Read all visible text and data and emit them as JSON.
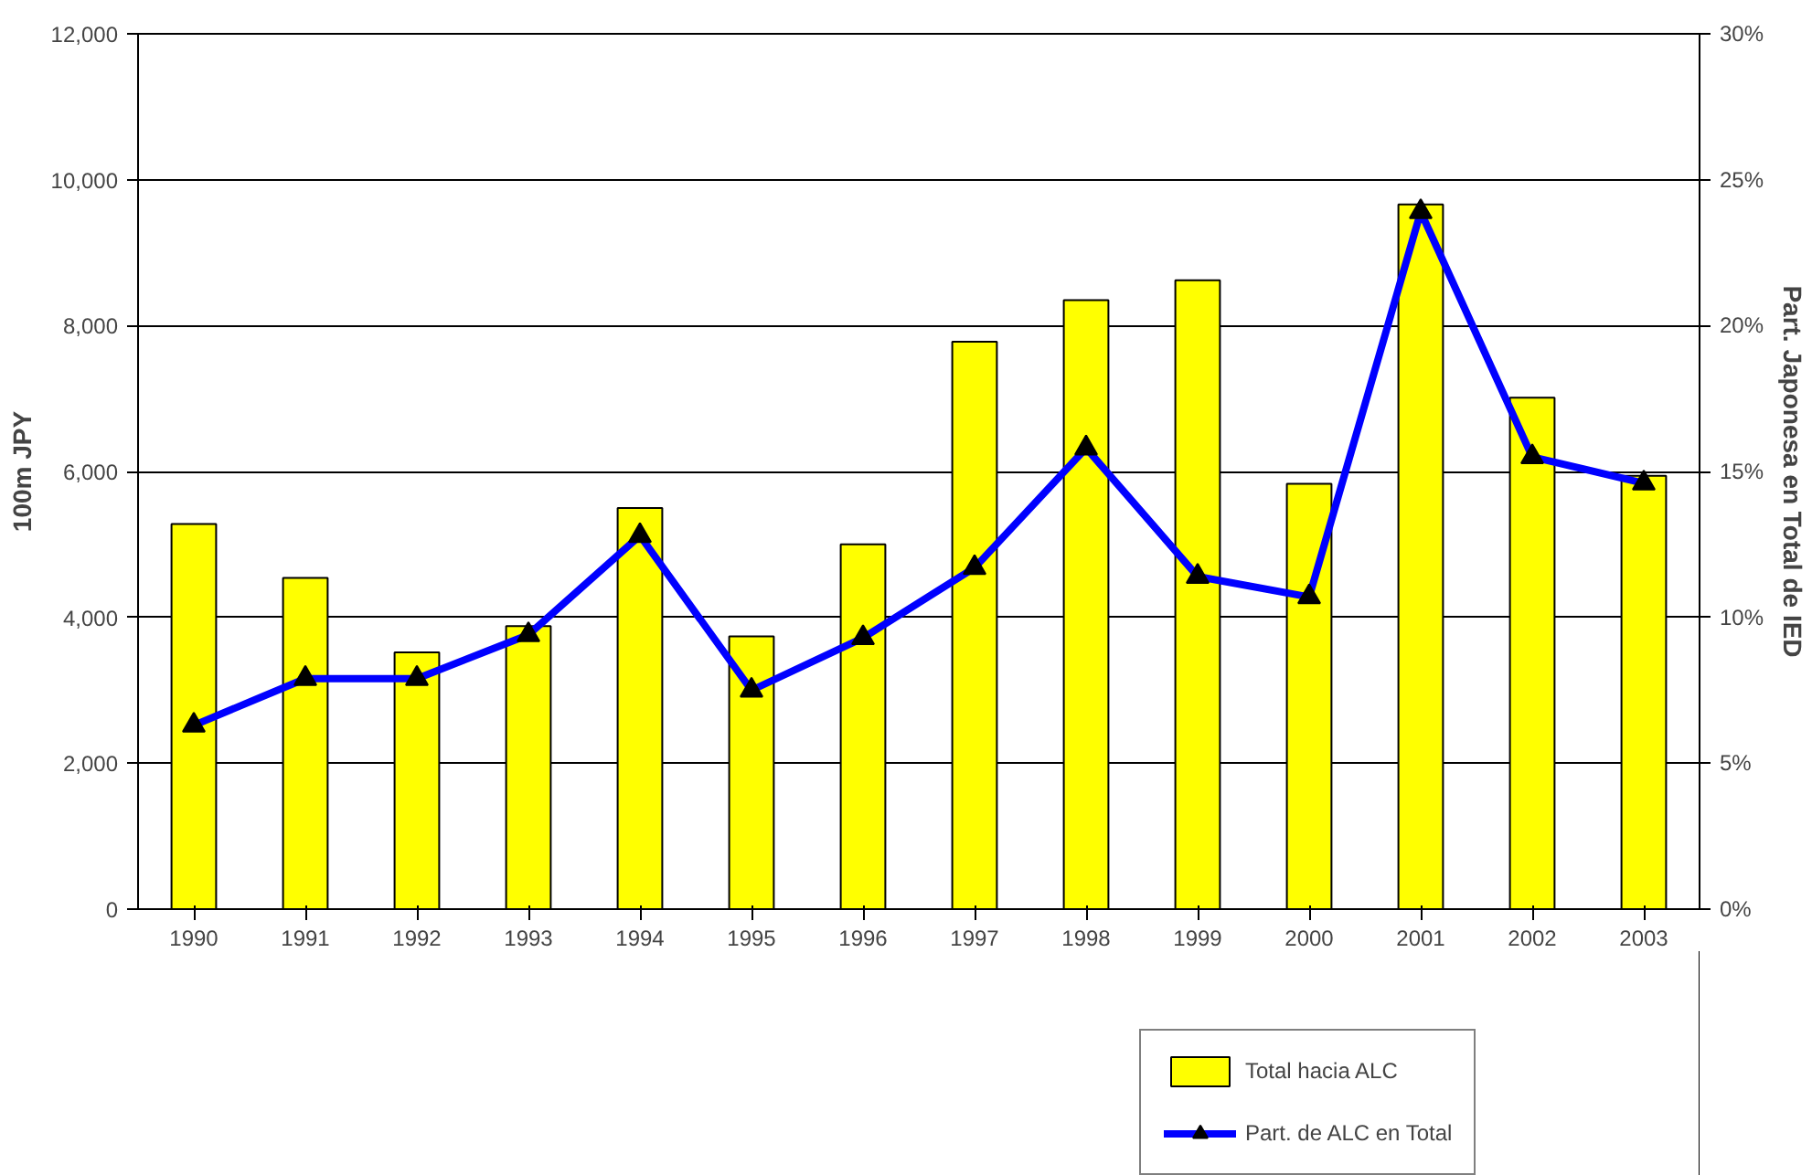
{
  "chart_data": {
    "type": "bar",
    "categories": [
      "1990",
      "1991",
      "1992",
      "1993",
      "1994",
      "1995",
      "1996",
      "1997",
      "1998",
      "1999",
      "2000",
      "2001",
      "2002",
      "2003"
    ],
    "ylabel": "100m JPY",
    "y2label": "Part. Japonesa en Total de IED",
    "series": [
      {
        "name": "Total hacia ALC",
        "type": "bar",
        "color": "#ffff00",
        "values": [
          5280,
          4540,
          3520,
          3880,
          5500,
          3740,
          5000,
          7780,
          8350,
          8620,
          5830,
          9660,
          7010,
          5940
        ]
      },
      {
        "name": "Part. de ALC en Total",
        "type": "line",
        "axis": "y2",
        "color": "#0000ff",
        "marker": "triangle",
        "values": [
          6.3,
          7.9,
          7.9,
          9.4,
          12.8,
          7.5,
          9.3,
          11.7,
          15.8,
          11.4,
          10.7,
          23.9,
          15.5,
          14.6
        ]
      }
    ],
    "ylim": [
      0,
      12000
    ],
    "yticks": [
      {
        "value": 0,
        "label": "0"
      },
      {
        "value": 2000,
        "label": "2,000"
      },
      {
        "value": 4000,
        "label": "4,000"
      },
      {
        "value": 6000,
        "label": "6,000"
      },
      {
        "value": 8000,
        "label": "8,000"
      },
      {
        "value": 10000,
        "label": "10,000"
      },
      {
        "value": 12000,
        "label": "12,000"
      }
    ],
    "y2lim": [
      0,
      30
    ],
    "y2ticks": [
      {
        "value": 0,
        "label": "0%"
      },
      {
        "value": 5,
        "label": "5%"
      },
      {
        "value": 10,
        "label": "10%"
      },
      {
        "value": 15,
        "label": "15%"
      },
      {
        "value": 20,
        "label": "20%"
      },
      {
        "value": 25,
        "label": "25%"
      },
      {
        "value": 30,
        "label": "30%"
      }
    ],
    "grid": "y",
    "legend": "bottom"
  }
}
